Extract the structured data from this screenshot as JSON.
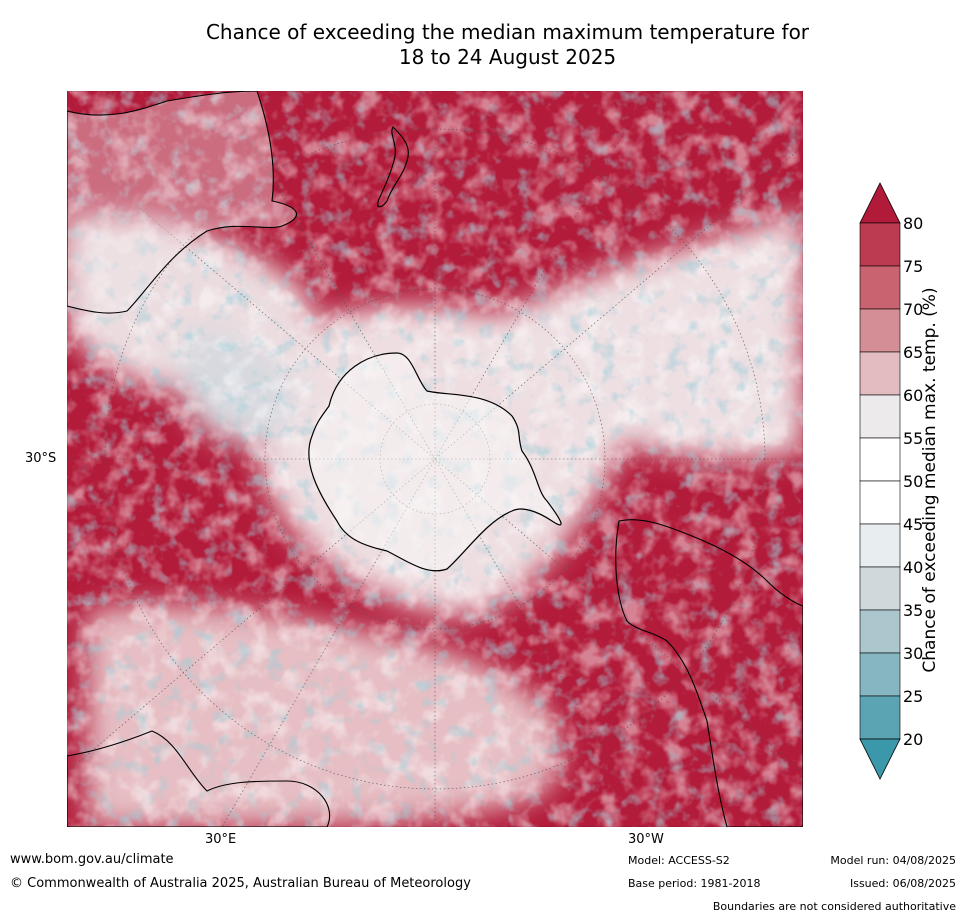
{
  "title": {
    "line1": "Chance of exceeding the median maximum temperature for",
    "line2": "18 to 24 August 2025"
  },
  "map": {
    "lat_label": "30°S",
    "lon_labels": [
      "30°E",
      "30°W"
    ],
    "colors": {
      "ocean_warm": "#b31b3a",
      "land_outline": "#000000",
      "graticule": "#555555"
    }
  },
  "colorbar": {
    "label": "Chance of exceeding median max. temp. (%)",
    "ticks": [
      "80",
      "75",
      "70",
      "65",
      "60",
      "55",
      "50",
      "45",
      "40",
      "35",
      "30",
      "25",
      "20"
    ],
    "colors": [
      "#b11b39",
      "#bd3b51",
      "#c8636f",
      "#d48e95",
      "#e2bcbf",
      "#eceaea",
      "#ffffff",
      "#ffffff",
      "#e8edf0",
      "#cfd9dc",
      "#abc6cc",
      "#86b6c2",
      "#5aa4b3",
      "#3a98aa"
    ]
  },
  "footer": {
    "website": "www.bom.gov.au/climate",
    "copyright": "© Commonwealth of Australia 2025, Australian Bureau of Meteorology",
    "model": "Model: ACCESS-S2",
    "model_run": "Model run: 04/08/2025",
    "base_period": "Base period: 1981-2018",
    "issued": "Issued: 06/08/2025",
    "disclaimer": "Boundaries are not considered authoritative"
  }
}
